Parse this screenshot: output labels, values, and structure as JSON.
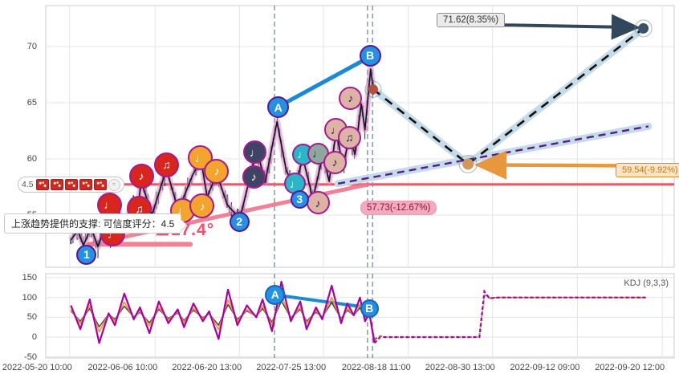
{
  "annotations": {
    "target_up": "71.62(8.35%)",
    "pullback": "59.54(-9.92%)",
    "support_level": "57.73(-12.67%)",
    "tooltip": "上涨趋势提供的支撑: 可信度评分：4.5",
    "angle": "∠17.4°",
    "score": "4.5",
    "pattern_icon_count": 5,
    "kdj_label": "KDJ (9,3,3)"
  },
  "colors": {
    "red_marker": "#da251d",
    "orange_marker": "#f2a42c",
    "navy_marker": "#3f4464",
    "teal_marker": "#29b6c8",
    "sage_marker": "#8fa89e",
    "tan_marker": "#dcb3a6",
    "marker_border": "#a21b8f",
    "wave_fill": "#2492e0",
    "wave_border": "#5a169a",
    "ab_blue": "#1a8ad6",
    "resistance_red": "#f25565",
    "support_pink": "#f17389",
    "band_blue": "#c6dbe9",
    "proj_dash_black": "#101010",
    "proj_dash_purple": "#571c86",
    "dark_arrow": "#33475c",
    "orange_arrow": "#e8973c",
    "dot_top": "#3c5268",
    "dot_mid": "#cf995d",
    "dot_current": "#b24f41",
    "kdj_j": "#a800a2",
    "kdj_d": "#ef9a3c",
    "kdj_k": "#4a4a55"
  },
  "chart_data": {
    "type": "candlestick+line",
    "main": {
      "ylim": [
        50.4,
        73.6
      ],
      "y_ticks": [
        70,
        65,
        60,
        55
      ],
      "x_tick_labels": [
        "2022-05-20 10:00",
        "2022-06-06 10:00",
        "2022-06-20 13:00",
        "2022-07-25 13:00",
        "2022-08-18 11:00",
        "2022-08-30 13:00",
        "2022-09-12 09:00",
        "2022-09-20 12:00"
      ],
      "x_tick_pct": [
        3.8,
        17.4,
        30.8,
        44.2,
        57.7,
        71.1,
        84.6,
        98.1
      ],
      "price_path": [
        [
          4.0,
          52.8
        ],
        [
          5.1,
          53.6
        ],
        [
          6.0,
          52.3
        ],
        [
          7.2,
          53.9
        ],
        [
          8.3,
          52.2
        ],
        [
          9.6,
          54.3
        ],
        [
          10.4,
          52.6
        ],
        [
          11.5,
          55.5
        ],
        [
          12.6,
          53.9
        ],
        [
          13.8,
          56.3
        ],
        [
          14.5,
          54.9
        ],
        [
          15.2,
          58.0
        ],
        [
          16.9,
          55.0
        ],
        [
          19.2,
          59.1
        ],
        [
          21.1,
          55.4
        ],
        [
          23.4,
          58.6
        ],
        [
          24.7,
          59.9
        ],
        [
          25.7,
          56.6
        ],
        [
          27.2,
          58.7
        ],
        [
          28.9,
          55.9
        ],
        [
          30.9,
          54.7
        ],
        [
          33.6,
          60.9
        ],
        [
          34.9,
          57.9
        ],
        [
          36.8,
          63.3
        ],
        [
          38.3,
          58.9
        ],
        [
          39.7,
          57.5
        ],
        [
          40.9,
          60.1
        ],
        [
          41.8,
          58.1
        ],
        [
          42.5,
          56.4
        ],
        [
          44.1,
          60.4
        ],
        [
          45.1,
          58.0
        ],
        [
          46.2,
          62.4
        ],
        [
          47.3,
          59.4
        ],
        [
          48.4,
          62.1
        ],
        [
          49.2,
          60.4
        ],
        [
          50.2,
          64.9
        ],
        [
          50.8,
          62.6
        ],
        [
          51.7,
          68.0
        ],
        [
          52.1,
          66.2
        ]
      ],
      "resistance_level": 57.73,
      "support_trend": [
        [
          7.0,
          52.4
        ],
        [
          51.3,
          57.73
        ]
      ],
      "base_segment": [
        [
          6.8,
          52.4
        ],
        [
          23.0,
          52.4
        ]
      ],
      "current_price": {
        "x": 52.1,
        "value": 66.2
      },
      "projection_zigzag": [
        [
          52.1,
          66.2
        ],
        [
          67.2,
          59.54
        ],
        [
          95.1,
          71.62
        ]
      ],
      "projection_support": [
        [
          46.5,
          57.8
        ],
        [
          95.9,
          62.9
        ]
      ],
      "ab_line": [
        [
          37.5,
          64.8
        ],
        [
          51.3,
          69.0
        ]
      ],
      "event_lines_pct": [
        36.4,
        51.2,
        52.0
      ],
      "dark_arrow": [
        [
          71.5,
          71.93
        ],
        [
          93.6,
          71.71
        ]
      ],
      "orange_arrow": [
        [
          90.9,
          59.4
        ],
        [
          69.3,
          59.47
        ]
      ],
      "wave_labels": [
        {
          "t": "1",
          "x": 6.5,
          "v": 51.5
        },
        {
          "t": "2",
          "x": 30.8,
          "v": 54.4
        },
        {
          "t": "3",
          "x": 40.4,
          "v": 56.4
        },
        {
          "t": "A",
          "x": 37.0,
          "v": 64.6
        },
        {
          "t": "B",
          "x": 51.6,
          "v": 69.2
        }
      ],
      "note_markers": [
        {
          "x": 15.2,
          "v": 58.5,
          "c": "red",
          "g": "eighth"
        },
        {
          "x": 19.2,
          "v": 59.5,
          "c": "red",
          "g": "beamed"
        },
        {
          "x": 10.1,
          "v": 55.9,
          "c": "red",
          "g": "quarter"
        },
        {
          "x": 14.9,
          "v": 55.6,
          "c": "red",
          "g": "beamed"
        },
        {
          "x": 10.7,
          "v": 53.3,
          "c": "red",
          "g": "quarter"
        },
        {
          "x": 24.6,
          "v": 60.1,
          "c": "orange",
          "g": "quarter"
        },
        {
          "x": 27.2,
          "v": 58.9,
          "c": "orange",
          "g": "eighth"
        },
        {
          "x": 21.8,
          "v": 55.4,
          "c": "orange",
          "g": "quarter"
        },
        {
          "x": 24.9,
          "v": 55.8,
          "c": "orange",
          "g": "eighth"
        },
        {
          "x": 33.3,
          "v": 60.6,
          "c": "navy",
          "g": "quarter"
        },
        {
          "x": 33.1,
          "v": 58.4,
          "c": "navy",
          "g": "eighth"
        },
        {
          "x": 40.9,
          "v": 60.4,
          "c": "teal",
          "g": "quarter"
        },
        {
          "x": 39.7,
          "v": 57.8,
          "c": "teal",
          "g": "quarter"
        },
        {
          "x": 43.3,
          "v": 60.5,
          "c": "sage",
          "g": "quarter"
        },
        {
          "x": 46.2,
          "v": 62.6,
          "c": "tan",
          "g": "quarter"
        },
        {
          "x": 48.3,
          "v": 61.9,
          "c": "tan",
          "g": "beamed"
        },
        {
          "x": 46.0,
          "v": 59.7,
          "c": "tan",
          "g": "eighth"
        },
        {
          "x": 43.3,
          "v": 56.1,
          "c": "tan",
          "g": "eighth"
        },
        {
          "x": 48.5,
          "v": 65.4,
          "c": "tan",
          "g": "eighth"
        }
      ]
    },
    "kdj": {
      "ylim": [
        -56,
        160
      ],
      "y_ticks": [
        150,
        100,
        50,
        0,
        -50
      ],
      "xs": [
        4,
        5.5,
        7,
        8.5,
        10,
        11,
        12.5,
        14,
        15,
        16.5,
        18,
        19.5,
        21,
        22,
        23.5,
        25,
        26,
        27.5,
        29,
        30.5,
        32,
        33.5,
        34.5,
        36,
        37.5,
        39,
        40.5,
        41.5,
        43,
        44,
        45.5,
        47,
        48,
        49,
        50,
        50.8,
        51.5,
        52.3,
        53.2,
        54,
        69,
        69.8,
        70.6,
        72,
        95.5
      ],
      "series": [
        {
          "name": "K",
          "values": [
            66,
            40,
            72,
            26,
            57,
            45,
            78,
            51,
            63,
            36,
            70,
            47,
            61,
            42,
            68,
            49,
            59,
            30,
            82,
            45,
            66,
            53,
            72,
            38,
            91,
            49,
            70,
            40,
            63,
            51,
            87,
            47,
            68,
            55,
            74,
            49,
            57,
            -6,
            3,
            0,
            0,
            105,
            99,
            100,
            100
          ]
        },
        {
          "name": "D",
          "values": [
            70,
            34,
            79,
            13,
            58,
            40,
            88,
            49,
            67,
            28,
            76,
            43,
            64,
            37,
            73,
            46,
            61,
            19,
            94,
            40,
            70,
            52,
            79,
            31,
            106,
            46,
            76,
            34,
            67,
            49,
            100,
            43,
            73,
            55,
            82,
            46,
            58,
            -10,
            2,
            0,
            0,
            110,
            98,
            100,
            100
          ]
        },
        {
          "name": "J",
          "values": [
            80,
            20,
            95,
            -15,
            60,
            30,
            110,
            45,
            75,
            10,
            90,
            35,
            70,
            25,
            85,
            40,
            65,
            -5,
            120,
            30,
            80,
            50,
            95,
            15,
            140,
            40,
            90,
            20,
            75,
            45,
            130,
            35,
            85,
            55,
            100,
            40,
            60,
            -15,
            0,
            0,
            0,
            115,
            98,
            100,
            100
          ]
        }
      ],
      "tail_start": 37,
      "ab_line": [
        [
          38.2,
          103
        ],
        [
          50.2,
          77
        ]
      ],
      "wave_labels": [
        {
          "t": "A",
          "x": 36.5,
          "v": 107
        },
        {
          "t": "B",
          "x": 51.5,
          "v": 73
        }
      ]
    }
  }
}
